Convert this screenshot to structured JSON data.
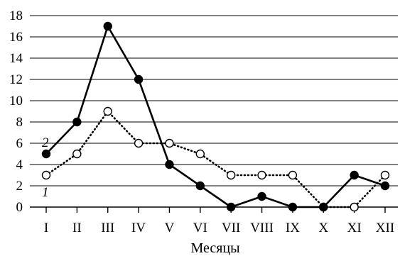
{
  "chart_data": {
    "type": "line",
    "title": "",
    "xlabel": "Месяцы",
    "ylabel": "",
    "ylim": [
      0,
      18
    ],
    "yticks": [
      0,
      2,
      4,
      6,
      8,
      10,
      12,
      14,
      16,
      18
    ],
    "grid": "horizontal",
    "categories": [
      "I",
      "II",
      "III",
      "IV",
      "V",
      "VI",
      "VII",
      "VIII",
      "IX",
      "X",
      "XI",
      "XII"
    ],
    "series": [
      {
        "name": "1",
        "style": "dotted",
        "marker": "open-circle",
        "values": [
          3,
          5,
          9,
          6,
          6,
          5,
          3,
          3,
          3,
          0,
          0,
          3
        ]
      },
      {
        "name": "2",
        "style": "solid",
        "marker": "filled-circle",
        "values": [
          5,
          8,
          17,
          12,
          4,
          2,
          0,
          1,
          0,
          0,
          3,
          2
        ]
      }
    ],
    "colors": {
      "line": "#000000",
      "grid": "#000000",
      "background": "#ffffff"
    }
  }
}
